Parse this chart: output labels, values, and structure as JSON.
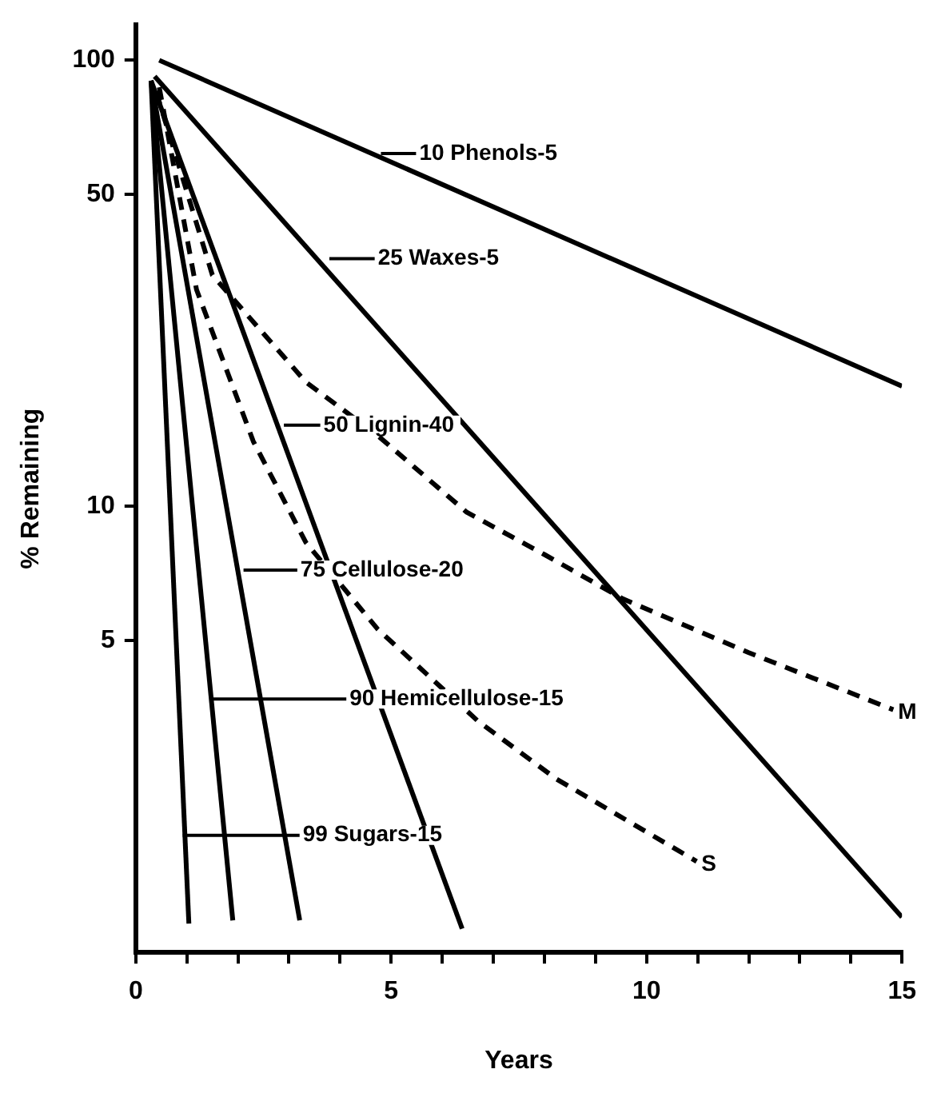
{
  "chart_data": {
    "type": "line",
    "xlabel": "Years",
    "ylabel": "% Remaining",
    "log": "y",
    "grid": false,
    "legend": false,
    "marker": "none",
    "xlim": [
      0,
      15
    ],
    "ylim": [
      1,
      120
    ],
    "xticks": [
      0,
      {
        "value": 1,
        "label": null
      },
      {
        "value": 2,
        "label": null
      },
      {
        "value": 3,
        "label": null
      },
      {
        "value": 4,
        "label": null
      },
      5,
      {
        "value": 6,
        "label": null
      },
      {
        "value": 7,
        "label": null
      },
      {
        "value": 8,
        "label": null
      },
      {
        "value": 9,
        "label": null
      },
      10,
      {
        "value": 11,
        "label": null
      },
      {
        "value": 12,
        "label": null
      },
      {
        "value": 13,
        "label": null
      },
      {
        "value": 14,
        "label": null
      },
      15
    ],
    "yticks": [
      5,
      10,
      50,
      100
    ],
    "series": [
      {
        "color": "#000000",
        "line_style": "solid",
        "x": [
          0.46,
          15
        ],
        "values": [
          100,
          18.6
        ]
      },
      {
        "color": "#000000",
        "line_style": "solid",
        "x": [
          0.37,
          15
        ],
        "values": [
          92,
          1.2
        ]
      },
      {
        "color": "#000000",
        "line_style": "solid",
        "x": [
          0.3,
          6.39
        ],
        "values": [
          90,
          1.13
        ]
      },
      {
        "color": "#000000",
        "line_style": "solid",
        "x": [
          0.3,
          3.21
        ],
        "values": [
          90,
          1.18
        ]
      },
      {
        "color": "#000000",
        "line_style": "solid",
        "x": [
          0.3,
          1.9
        ],
        "values": [
          90,
          1.18
        ]
      },
      {
        "color": "#000000",
        "line_style": "solid",
        "x": [
          0.3,
          1.04
        ],
        "values": [
          90,
          1.16
        ]
      },
      {
        "name": "M",
        "color": "#000000",
        "line_style": "dashed",
        "x": [
          0.4,
          1.5,
          3.33,
          4.74,
          6.48,
          8.0,
          9.54,
          12.0,
          14.83
        ],
        "values": [
          85,
          33,
          19,
          14.4,
          9.7,
          7.8,
          6.2,
          4.7,
          3.5
        ]
      },
      {
        "name": "S",
        "color": "#000000",
        "line_style": "dashed",
        "x": [
          0.46,
          1.19,
          2.3,
          3.33,
          4.74,
          6.7,
          8.23,
          10.98
        ],
        "values": [
          87,
          30.6,
          14,
          8.3,
          5.3,
          3.3,
          2.45,
          1.6
        ]
      }
    ],
    "annotations": [
      {
        "text": "10 Phenols-5",
        "x": 4.8,
        "y": 61.8
      },
      {
        "text": "25 Waxes-5",
        "x": 3.79,
        "y": 35.9
      },
      {
        "text": "50 Lignin-40",
        "x": 2.9,
        "y": 15.2
      },
      {
        "text": "75 Cellulose-20",
        "x": 2.11,
        "y": 7.2
      },
      {
        "text": "90 Hemicellulose-15",
        "x": 1.5,
        "y": 3.7
      },
      {
        "text": "99 Sugars-15",
        "x": 0.92,
        "y": 1.83
      }
    ]
  }
}
